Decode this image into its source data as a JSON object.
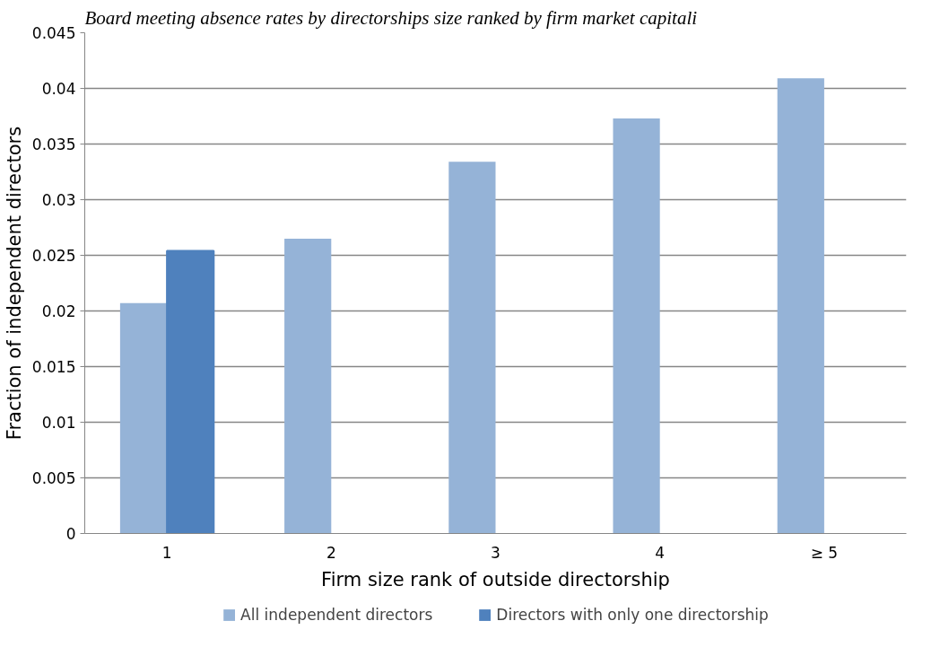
{
  "chart_data": {
    "type": "bar",
    "title": "Board meeting absence rates by directorships size ranked by firm market capitali",
    "xlabel": "Firm size rank of outside directorship",
    "ylabel": "Fraction of independent directors",
    "categories": [
      "1",
      "2",
      "3",
      "4",
      "≥ 5"
    ],
    "series": [
      {
        "name": "All independent directors",
        "color": "#95b3d7",
        "values": [
          0.0207,
          0.0265,
          0.0334,
          0.0373,
          0.0409
        ]
      },
      {
        "name": "Directors with only one directorship",
        "color": "#4f81bd",
        "values": [
          0.0254,
          null,
          null,
          null,
          null
        ]
      }
    ],
    "ylim": [
      0,
      0.045
    ],
    "yticks": [
      0,
      0.005,
      0.01,
      0.015,
      0.02,
      0.025,
      0.03,
      0.035,
      0.04,
      0.045
    ],
    "grid": "y",
    "legend": "bottom"
  }
}
